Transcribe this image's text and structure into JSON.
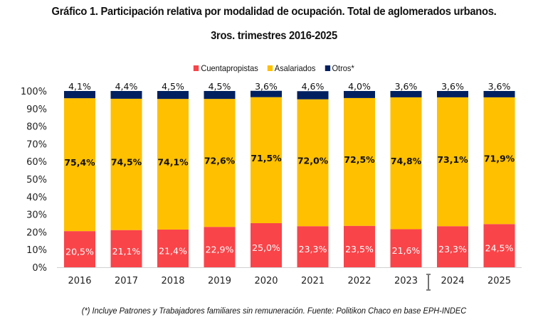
{
  "chart_data": {
    "type": "bar",
    "stacked": true,
    "title": "Gráfico 1. Participación relativa por modalidad de ocupación. Total de aglomerados urbanos.",
    "subtitle": "3ros. trimestres 2016-2025",
    "xlabel": "",
    "ylabel": "",
    "ylim": [
      0,
      100
    ],
    "yticks": [
      "0%",
      "10%",
      "20%",
      "30%",
      "40%",
      "50%",
      "60%",
      "70%",
      "80%",
      "90%",
      "100%"
    ],
    "categories": [
      "2016",
      "2017",
      "2018",
      "2019",
      "2020",
      "2021",
      "2022",
      "2023",
      "2024",
      "2025"
    ],
    "series": [
      {
        "name": "Cuentapropistas",
        "color": "#f94449",
        "label_color": "#ffffff",
        "values": [
          20.5,
          21.1,
          21.4,
          22.9,
          25.0,
          23.3,
          23.5,
          21.6,
          23.3,
          24.5
        ],
        "labels": [
          "20,5%",
          "21,1%",
          "21,4%",
          "22,9%",
          "25,0%",
          "23,3%",
          "23,5%",
          "21,6%",
          "23,3%",
          "24,5%"
        ]
      },
      {
        "name": "Asalariados",
        "color": "#ffc000",
        "label_color": "#111111",
        "values": [
          75.4,
          74.5,
          74.1,
          72.6,
          71.5,
          72.0,
          72.5,
          74.8,
          73.1,
          71.9
        ],
        "labels": [
          "75,4%",
          "74,5%",
          "74,1%",
          "72,6%",
          "71,5%",
          "72,0%",
          "72,5%",
          "74,8%",
          "73,1%",
          "71,9%"
        ]
      },
      {
        "name": "Otros*",
        "color": "#002060",
        "label_color": "#111111",
        "values": [
          4.1,
          4.4,
          4.5,
          4.5,
          3.6,
          4.6,
          4.0,
          3.6,
          3.6,
          3.6
        ],
        "labels": [
          "4,1%",
          "4,4%",
          "4,5%",
          "4,5%",
          "3,6%",
          "4,6%",
          "4,0%",
          "3,6%",
          "3,6%",
          "3,6%"
        ]
      }
    ],
    "legend": "top-center",
    "grid": false
  },
  "footnote": "(*) Incluye Patrones y Trabajadores familiares sin remuneración. Fuente: Politikon Chaco en base EPH-INDEC"
}
